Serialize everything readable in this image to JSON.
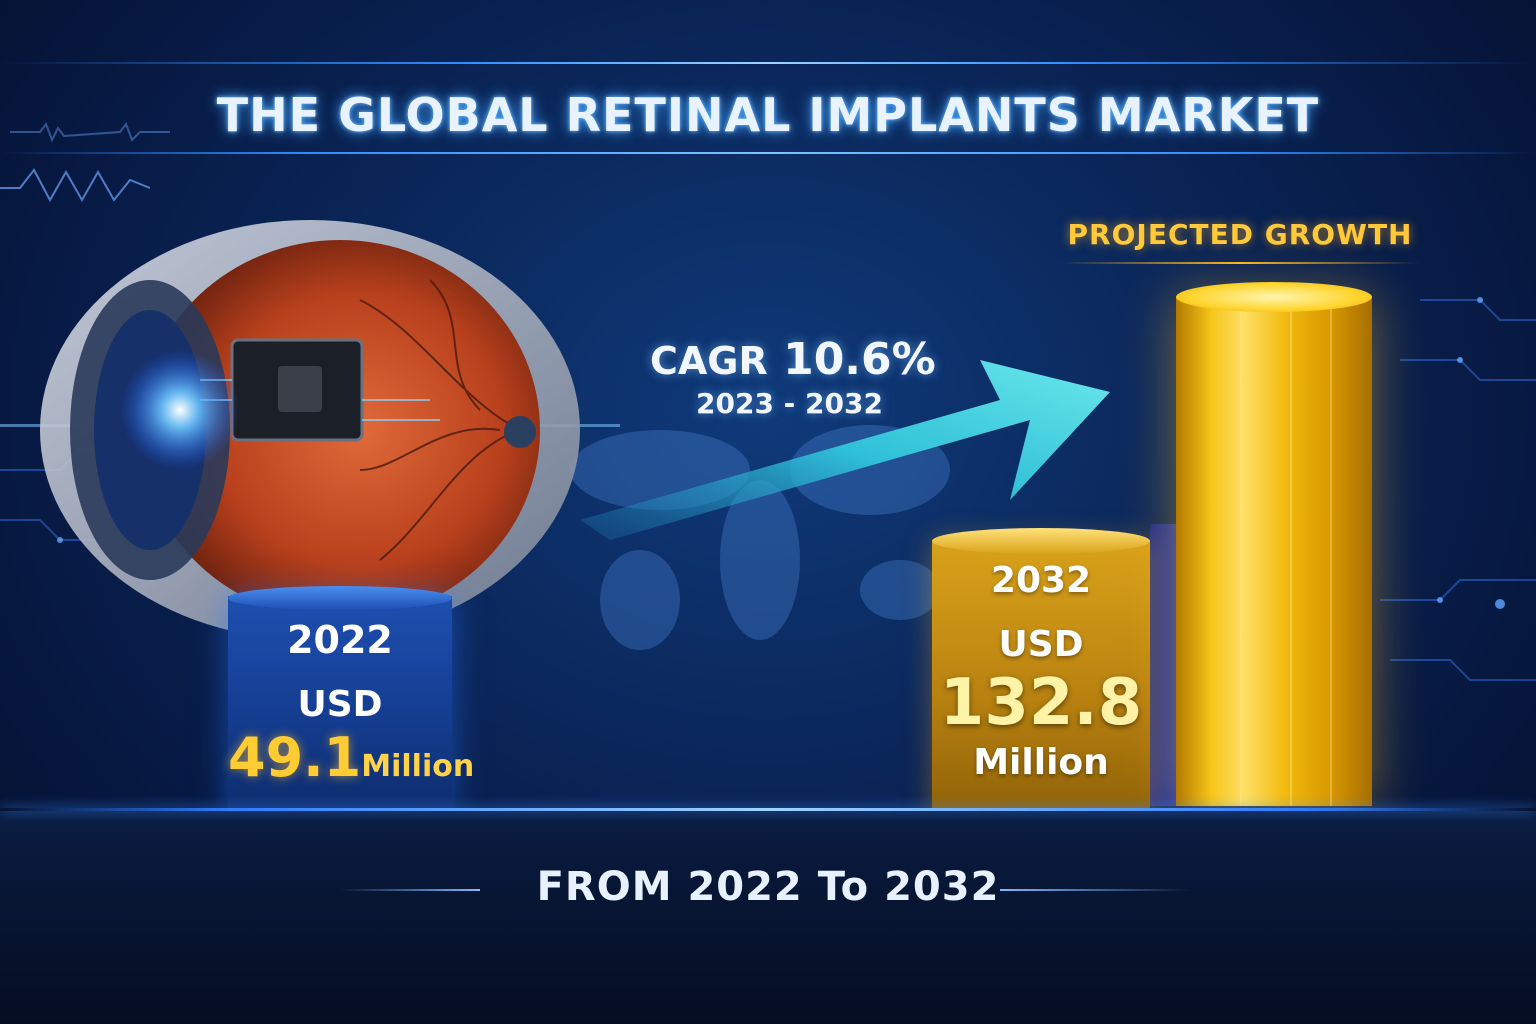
{
  "title": "THE  GLOBAL RETINAL IMPLANTS MARKET",
  "cagr": {
    "label": "CAGR",
    "value": "10.6%",
    "period": "2023 - 2032"
  },
  "start": {
    "year": "2022",
    "currency": "USD",
    "value": "49.1",
    "unit": "Million"
  },
  "end": {
    "year": "2032",
    "currency": "USD",
    "value": "132.8",
    "unit": "Million"
  },
  "projected_label": "PROJECTED GROWTH",
  "footer": "FROM 2022 To 2032",
  "colors": {
    "background": "#0a2456",
    "accent_blue": "#2f8cff",
    "gold": "#ffcc33",
    "arrow": "#3fe0e8"
  }
}
